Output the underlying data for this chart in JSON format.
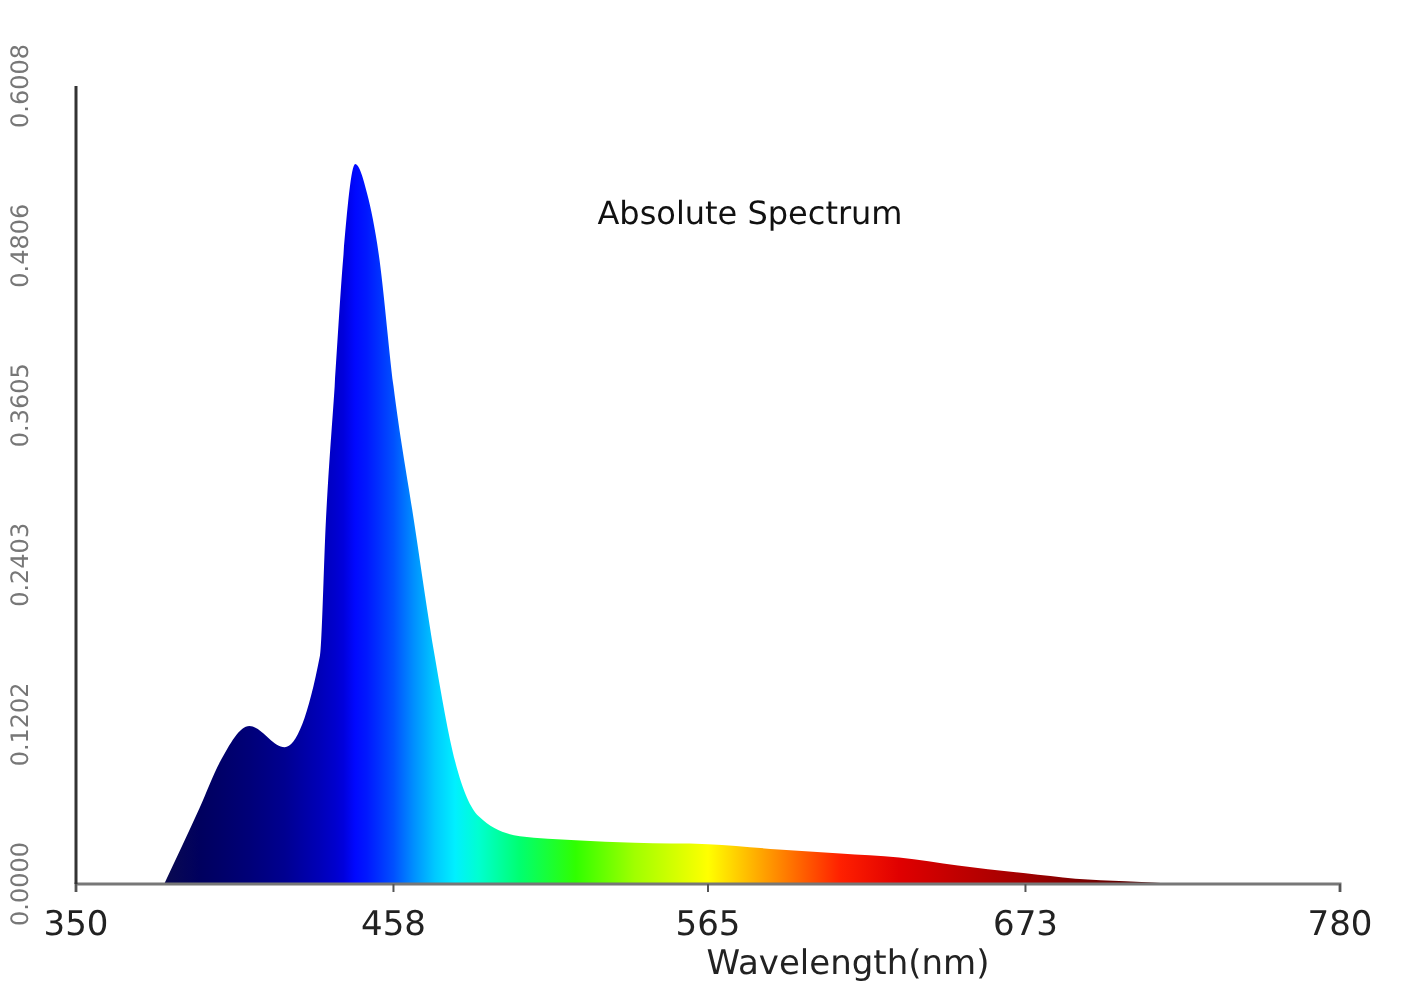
{
  "chart_data": {
    "type": "area",
    "title": "Absolute Spectrum",
    "xlabel": "Wavelength(nm)",
    "x": [
      380,
      392,
      399,
      409,
      421,
      433,
      435,
      438,
      441,
      445,
      449,
      453,
      458,
      465,
      472,
      479,
      487,
      501,
      520,
      540,
      565,
      589,
      610,
      630,
      650,
      673,
      690,
      707,
      725
    ],
    "series": [
      {
        "values": [
          0,
          0.057,
          0.092,
          0.119,
          0.103,
          0.172,
          0.273,
          0.375,
          0.474,
          0.542,
          0.52,
          0.474,
          0.375,
          0.273,
          0.172,
          0.092,
          0.051,
          0.036,
          0.033,
          0.031,
          0.03,
          0.026,
          0.023,
          0.02,
          0.014,
          0.008,
          0.004,
          0.002,
          0
        ],
        "colors": [
          "#0a0a50",
          "#00005e",
          "#000068",
          "#000078",
          "#000090",
          "#0000b8",
          "#0000c0",
          "#0000cc",
          "#0000dc",
          "#0008ff",
          "#0018ff",
          "#0030ff",
          "#0050ff",
          "#0090ff",
          "#00c8ff",
          "#00f0ff",
          "#00ffd0",
          "#00ff70",
          "#30ff00",
          "#a0ff00",
          "#ffff00",
          "#ff8800",
          "#ff2000",
          "#e00000",
          "#c00000",
          "#a00000",
          "#800000",
          "#600000",
          "#400000"
        ]
      }
    ],
    "xlim": [
      350,
      780
    ],
    "xticks": [
      350,
      458,
      565,
      673,
      780
    ],
    "ylim": [
      0,
      0.6008
    ],
    "yticks": [
      {
        "value": 0,
        "label": "0.0000"
      },
      0.1202,
      0.2403,
      0.3605,
      0.4806,
      0.6008
    ]
  }
}
